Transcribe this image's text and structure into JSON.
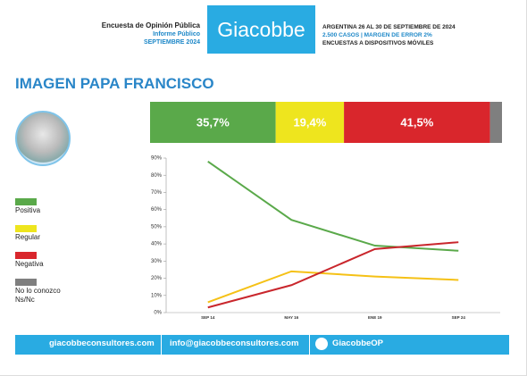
{
  "header": {
    "left": [
      "Encuesta de Opinión Pública",
      "Informe Público",
      "SEPTIEMBRE 2024"
    ],
    "brand": "Giacobbe",
    "right": [
      "ARGENTINA 26 AL 30 DE SEPTIEMBRE DE 2024",
      "2.500 CASOS | MARGEN DE ERROR 2%",
      "ENCUESTAS A DISPOSITIVOS MÓVILES"
    ]
  },
  "footer": [
    "giacobbeconsultores.com",
    "info@giacobbeconsultores.com",
    "GiacobbeOP"
  ],
  "chart_data": [
    {
      "type": "stacked-bar",
      "title": "IMAGEN PAPA FRANCISCO",
      "categories": [
        "Positiva",
        "Regular",
        "Negativa",
        "No lo conozco Ns/Nc"
      ],
      "values": [
        35.7,
        19.4,
        41.5,
        3.4
      ],
      "value_labels": [
        "35,7%",
        "19,4%",
        "41,5%",
        null
      ],
      "colors": [
        "#5aa94a",
        "#eee51e",
        "#d9262c",
        "#7f7f7f"
      ]
    },
    {
      "type": "line",
      "categories": [
        "SEP 14",
        "MAY 16",
        "ENE 19",
        "SEP 24"
      ],
      "series": [
        {
          "color": "#5aa94a",
          "values": [
            88,
            54,
            39,
            36
          ]
        },
        {
          "color": "#f5c116",
          "values": [
            6,
            24,
            21,
            19
          ]
        },
        {
          "color": "#c9262c",
          "values": [
            3,
            16,
            37,
            41
          ]
        }
      ],
      "ylim": [
        0,
        90
      ],
      "yticks": [
        {
          "value": 0,
          "label": "0%"
        },
        {
          "value": 10,
          "label": "10%"
        },
        {
          "value": 20,
          "label": "20%"
        },
        {
          "value": 30,
          "label": "30%"
        },
        {
          "value": 40,
          "label": "40%"
        },
        {
          "value": 50,
          "label": "50%"
        },
        {
          "value": 60,
          "label": "60%"
        },
        {
          "value": 70,
          "label": "70%"
        },
        {
          "value": 80,
          "label": "80%"
        },
        {
          "value": 90,
          "label": "90%"
        }
      ]
    }
  ]
}
